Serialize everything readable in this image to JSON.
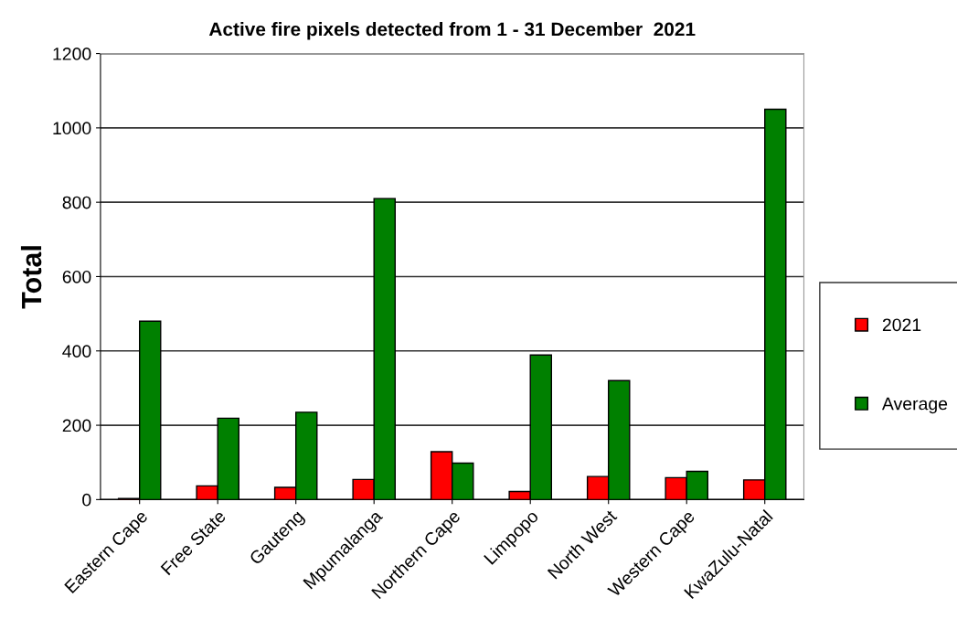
{
  "chart_data": {
    "type": "bar",
    "title": "Active fire pixels detected from 1 - 31 December  2021",
    "ylabel": "Total",
    "categories": [
      "Eastern Cape",
      "Free State",
      "Gauteng",
      "Mpumalanga",
      "Northern Cape",
      "Limpopo",
      "North West",
      "Western Cape",
      "KwaZulu-Natal"
    ],
    "series": [
      {
        "name": "2021",
        "color": "#ff0000",
        "values": [
          3,
          37,
          33,
          54,
          129,
          22,
          62,
          59,
          53
        ]
      },
      {
        "name": "Average",
        "color": "#008000",
        "values": [
          480,
          219,
          235,
          810,
          98,
          389,
          320,
          76,
          1050
        ]
      }
    ],
    "ylim": [
      0,
      1200
    ],
    "yticks": [
      0,
      200,
      400,
      600,
      800,
      1000,
      1200
    ],
    "grid": "y",
    "legend": "right"
  }
}
